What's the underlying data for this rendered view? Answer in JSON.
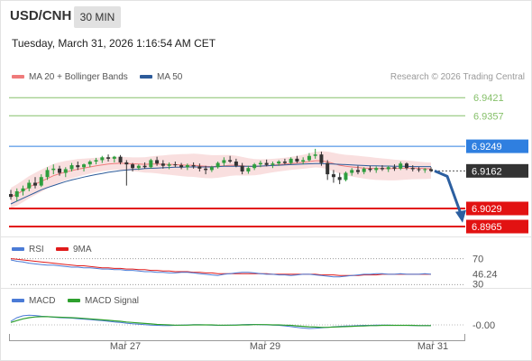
{
  "header": {
    "pair": "USD/CNH",
    "timeframe": "30 MIN",
    "datetime": "Tuesday, March 31, 2026 1:16:54 AM CET"
  },
  "legend": {
    "ma20_label": "MA 20 + Bollinger Bands",
    "ma20_color": "#ef7b7b",
    "ma50_label": "MA 50",
    "ma50_color": "#2d5b9a"
  },
  "credit": "Research © 2026 Trading Central",
  "rsi_legend": {
    "rsi_label": "RSI",
    "rsi_color": "#4b7bd6",
    "ma_label": "9MA",
    "ma_color": "#e01b1b"
  },
  "macd_legend": {
    "macd_label": "MACD",
    "macd_color": "#4b7bd6",
    "signal_label": "MACD Signal",
    "signal_color": "#2ea02e"
  },
  "chart_data": [
    {
      "type": "candlestick",
      "y_range": [
        6.893,
        6.946
      ],
      "levels": [
        {
          "value": 6.9421,
          "label": "6.9421",
          "color": "#86c06a",
          "kind": "resistance"
        },
        {
          "value": 6.9357,
          "label": "6.9357",
          "color": "#86c06a",
          "kind": "resistance"
        },
        {
          "value": 6.9249,
          "label": "6.9249",
          "color": "#2f7fe0",
          "kind": "pivot"
        },
        {
          "value": 6.9162,
          "label": "6.9162",
          "color": "#333333",
          "kind": "last"
        },
        {
          "value": 6.9029,
          "label": "6.9029",
          "color": "#e21212",
          "kind": "support"
        },
        {
          "value": 6.8965,
          "label": "6.8965",
          "color": "#e21212",
          "kind": "support"
        }
      ],
      "candles": [
        [
          6.908,
          6.9095,
          6.906,
          6.907
        ],
        [
          6.907,
          6.91,
          6.9055,
          6.909
        ],
        [
          6.909,
          6.911,
          6.9075,
          6.91
        ],
        [
          6.91,
          6.913,
          6.909,
          6.912
        ],
        [
          6.912,
          6.914,
          6.91,
          6.911
        ],
        [
          6.911,
          6.915,
          6.9105,
          6.914
        ],
        [
          6.914,
          6.9175,
          6.913,
          6.9165
        ],
        [
          6.9165,
          6.9185,
          6.915,
          6.917
        ],
        [
          6.917,
          6.918,
          6.9145,
          6.9155
        ],
        [
          6.9155,
          6.9175,
          6.914,
          6.9168
        ],
        [
          6.9168,
          6.919,
          6.916,
          6.9182
        ],
        [
          6.9182,
          6.9195,
          6.9165,
          6.9175
        ],
        [
          6.9175,
          6.9188,
          6.916,
          6.9185
        ],
        [
          6.9185,
          6.92,
          6.9175,
          6.9195
        ],
        [
          6.9195,
          6.9208,
          6.9185,
          6.92
        ],
        [
          6.92,
          6.9215,
          6.919,
          6.921
        ],
        [
          6.921,
          6.922,
          6.9195,
          6.9205
        ],
        [
          6.9205,
          6.9215,
          6.9192,
          6.9212
        ],
        [
          6.9212,
          6.9218,
          6.9185,
          6.9192
        ],
        [
          6.9192,
          6.92,
          6.911,
          6.9185
        ],
        [
          6.9185,
          6.919,
          6.916,
          6.9172
        ],
        [
          6.9172,
          6.9185,
          6.9165,
          6.918
        ],
        [
          6.918,
          6.9192,
          6.917,
          6.9175
        ],
        [
          6.9175,
          6.9205,
          6.917,
          6.92
        ],
        [
          6.92,
          6.9212,
          6.918,
          6.9188
        ],
        [
          6.9188,
          6.92,
          6.917,
          6.918
        ],
        [
          6.918,
          6.9192,
          6.9168,
          6.9185
        ],
        [
          6.9185,
          6.9195,
          6.9175,
          6.9182
        ],
        [
          6.9182,
          6.919,
          6.9168,
          6.9175
        ],
        [
          6.9175,
          6.9188,
          6.9165,
          6.9182
        ],
        [
          6.9182,
          6.9192,
          6.917,
          6.9178
        ],
        [
          6.9178,
          6.9188,
          6.916,
          6.917
        ],
        [
          6.917,
          6.918,
          6.915,
          6.9165
        ],
        [
          6.9165,
          6.918,
          6.9158,
          6.9175
        ],
        [
          6.9175,
          6.9195,
          6.917,
          6.919
        ],
        [
          6.919,
          6.921,
          6.918,
          6.92
        ],
        [
          6.92,
          6.9215,
          6.919,
          6.9195
        ],
        [
          6.9195,
          6.9205,
          6.9175,
          6.918
        ],
        [
          6.918,
          6.919,
          6.915,
          6.916
        ],
        [
          6.916,
          6.918,
          6.9152,
          6.9172
        ],
        [
          6.9172,
          6.919,
          6.9165,
          6.9185
        ],
        [
          6.9185,
          6.9198,
          6.9175,
          6.919
        ],
        [
          6.919,
          6.9202,
          6.9178,
          6.9183
        ],
        [
          6.9183,
          6.9195,
          6.9172,
          6.9188
        ],
        [
          6.9188,
          6.92,
          6.918,
          6.9195
        ],
        [
          6.9195,
          6.9205,
          6.9185,
          6.919
        ],
        [
          6.919,
          6.921,
          6.9185,
          6.9205
        ],
        [
          6.9205,
          6.9215,
          6.919,
          6.9195
        ],
        [
          6.9195,
          6.921,
          6.9185,
          6.92
        ],
        [
          6.92,
          6.9225,
          6.9195,
          6.9215
        ],
        [
          6.9215,
          6.924,
          6.9205,
          6.922
        ],
        [
          6.922,
          6.923,
          6.918,
          6.919
        ],
        [
          6.919,
          6.92,
          6.913,
          6.915
        ],
        [
          6.915,
          6.9165,
          6.912,
          6.914
        ],
        [
          6.914,
          6.9155,
          6.9115,
          6.913
        ],
        [
          6.913,
          6.916,
          6.9125,
          6.9155
        ],
        [
          6.9155,
          6.9172,
          6.9145,
          6.9165
        ],
        [
          6.9165,
          6.918,
          6.915,
          6.9158
        ],
        [
          6.9158,
          6.9175,
          6.915,
          6.917
        ],
        [
          6.917,
          6.918,
          6.9158,
          6.9165
        ],
        [
          6.9165,
          6.9178,
          6.9155,
          6.9172
        ],
        [
          6.9172,
          6.9182,
          6.9162,
          6.9168
        ],
        [
          6.9168,
          6.918,
          6.9158,
          6.9175
        ],
        [
          6.9175,
          6.9185,
          6.9162,
          6.917
        ],
        [
          6.917,
          6.9195,
          6.9165,
          6.9188
        ],
        [
          6.9188,
          6.9192,
          6.9165,
          6.9172
        ],
        [
          6.9172,
          6.9182,
          6.916,
          6.9168
        ],
        [
          6.9168,
          6.9175,
          6.9158,
          6.9165
        ],
        [
          6.9165,
          6.9172,
          6.9155,
          6.9168
        ],
        [
          6.9168,
          6.9175,
          6.9158,
          6.9162
        ]
      ],
      "ma20": [
        6.907,
        6.908,
        6.9092,
        6.9105,
        6.9115,
        6.9125,
        6.9135,
        6.9145,
        6.9152,
        6.9158,
        6.9163,
        6.9168,
        6.9172,
        6.9176,
        6.918,
        6.9183,
        6.9186,
        6.9188,
        6.9189,
        6.9188,
        6.9187,
        6.9186,
        6.9185,
        6.9186,
        6.9186,
        6.9185,
        6.9185,
        6.9184,
        6.9183,
        6.9182,
        6.9182,
        6.918,
        6.9178,
        6.9177,
        6.9178,
        6.918,
        6.9182,
        6.9182,
        6.918,
        6.9178,
        6.9177,
        6.9178,
        6.918,
        6.9182,
        6.9184,
        6.9186,
        6.9188,
        6.919,
        6.9192,
        6.9195,
        6.9198,
        6.9198,
        6.9194,
        6.9188,
        6.9182,
        6.9178,
        6.9176,
        6.9174,
        6.9172,
        6.9171,
        6.917,
        6.917,
        6.917,
        6.917,
        6.9171,
        6.9172,
        6.9172,
        6.9171,
        6.917,
        6.9169
      ],
      "ma50": [
        6.9045,
        6.9055,
        6.9065,
        6.9075,
        6.9085,
        6.9095,
        6.9103,
        6.911,
        6.9117,
        6.9124,
        6.913,
        6.9135,
        6.914,
        6.9145,
        6.9149,
        6.9153,
        6.9157,
        6.916,
        6.9163,
        6.9165,
        6.9167,
        6.9168,
        6.917,
        6.9171,
        6.9172,
        6.9173,
        6.9174,
        6.9175,
        6.9175,
        6.9176,
        6.9176,
        6.9176,
        6.9176,
        6.9176,
        6.9177,
        6.9178,
        6.9178,
        6.9178,
        6.9178,
        6.9178,
        6.9178,
        6.9179,
        6.918,
        6.9181,
        6.9182,
        6.9183,
        6.9184,
        6.9185,
        6.9186,
        6.9187,
        6.9188,
        6.9188,
        6.9187,
        6.9186,
        6.9185,
        6.9184,
        6.9183,
        6.9182,
        6.9181,
        6.918,
        6.918,
        6.9179,
        6.9179,
        6.9178,
        6.9178,
        6.9178,
        6.9177,
        6.9177,
        6.9177,
        6.9177
      ],
      "band_width": 0.0032,
      "projection": {
        "from": 6.9162,
        "to": 6.8985
      }
    },
    {
      "type": "line",
      "name": "RSI",
      "y_range": [
        25,
        75
      ],
      "reference_label": "70",
      "extra_label": "30",
      "last_label": "46.24",
      "last_value": 46.24,
      "rsi": [
        68,
        66,
        65,
        63,
        62,
        61,
        60,
        60,
        59,
        58,
        57,
        57,
        56,
        56,
        55,
        54,
        54,
        53,
        53,
        52,
        52,
        51,
        50,
        50,
        49,
        49,
        48,
        48,
        49,
        49,
        48,
        47,
        46,
        45,
        44,
        46,
        47,
        48,
        49,
        49,
        48,
        47,
        46,
        46,
        45,
        45,
        44,
        45,
        46,
        46,
        45,
        44,
        43,
        42,
        42,
        43,
        44,
        45,
        46,
        46,
        47,
        47,
        46,
        46,
        47,
        46,
        46,
        46,
        47,
        46
      ],
      "ma": [
        70,
        69,
        68,
        67,
        66,
        65,
        64,
        63,
        62,
        61,
        60,
        59,
        59,
        58,
        57,
        56,
        56,
        55,
        55,
        54,
        54,
        53,
        53,
        52,
        52,
        51,
        51,
        50,
        50,
        50,
        49,
        49,
        48,
        48,
        47,
        47,
        47,
        47,
        47,
        47,
        47,
        47,
        47,
        46,
        46,
        46,
        46,
        46,
        46,
        46,
        46,
        45,
        45,
        45,
        44,
        44,
        44,
        44,
        45,
        45,
        45,
        46,
        46,
        46,
        46,
        46,
        46,
        46,
        46,
        46
      ]
    },
    {
      "type": "line",
      "name": "MACD",
      "y_range": [
        -0.006,
        0.006
      ],
      "last_label": "-0.00",
      "macd": [
        0.0015,
        0.003,
        0.0038,
        0.004,
        0.0039,
        0.0036,
        0.0034,
        0.0032,
        0.003,
        0.0029,
        0.0028,
        0.0026,
        0.0024,
        0.0022,
        0.002,
        0.0018,
        0.0015,
        0.0012,
        0.001,
        0.0007,
        0.0005,
        0.0003,
        0.0001,
        -0.0001,
        -0.0002,
        -0.0003,
        -0.0003,
        -0.0002,
        -0.0001,
        0.0,
        0.0001,
        0.0001,
        0.0,
        -0.0001,
        -0.0002,
        -0.0002,
        -0.0001,
        0.0,
        0.0001,
        0.0002,
        0.0002,
        0.0001,
        0.0,
        -0.0001,
        -0.0002,
        -0.0004,
        -0.0007,
        -0.001,
        -0.0013,
        -0.0015,
        -0.0014,
        -0.0012,
        -0.001,
        -0.0008,
        -0.0006,
        -0.0005,
        -0.0004,
        -0.0003,
        -0.0002,
        -0.0002,
        -0.0001,
        -0.0001,
        -0.0001,
        -0.0002,
        -0.0002,
        -0.0002,
        -0.0003,
        -0.0003,
        -0.0003,
        -0.0003
      ],
      "signal": [
        0.001,
        0.0018,
        0.0025,
        0.003,
        0.0033,
        0.0034,
        0.0034,
        0.0033,
        0.0032,
        0.0031,
        0.003,
        0.0029,
        0.0027,
        0.0025,
        0.0023,
        0.0021,
        0.0019,
        0.0017,
        0.0015,
        0.0012,
        0.001,
        0.0008,
        0.0006,
        0.0004,
        0.0002,
        0.0001,
        0.0,
        -0.0001,
        -0.0001,
        -0.0001,
        0.0,
        0.0,
        0.0,
        0.0,
        -0.0001,
        -0.0001,
        -0.0001,
        -0.0001,
        0.0,
        0.0,
        0.0001,
        0.0001,
        0.0001,
        0.0,
        0.0,
        -0.0001,
        -0.0002,
        -0.0004,
        -0.0006,
        -0.0008,
        -0.0009,
        -0.001,
        -0.001,
        -0.0009,
        -0.0008,
        -0.0007,
        -0.0006,
        -0.0005,
        -0.0004,
        -0.0003,
        -0.0003,
        -0.0002,
        -0.0002,
        -0.0002,
        -0.0002,
        -0.0002,
        -0.0002,
        -0.0003,
        -0.0003,
        -0.0003
      ]
    }
  ],
  "x_axis": {
    "ticks": [
      "Mar 27",
      "Mar 29",
      "Mar 31"
    ]
  }
}
